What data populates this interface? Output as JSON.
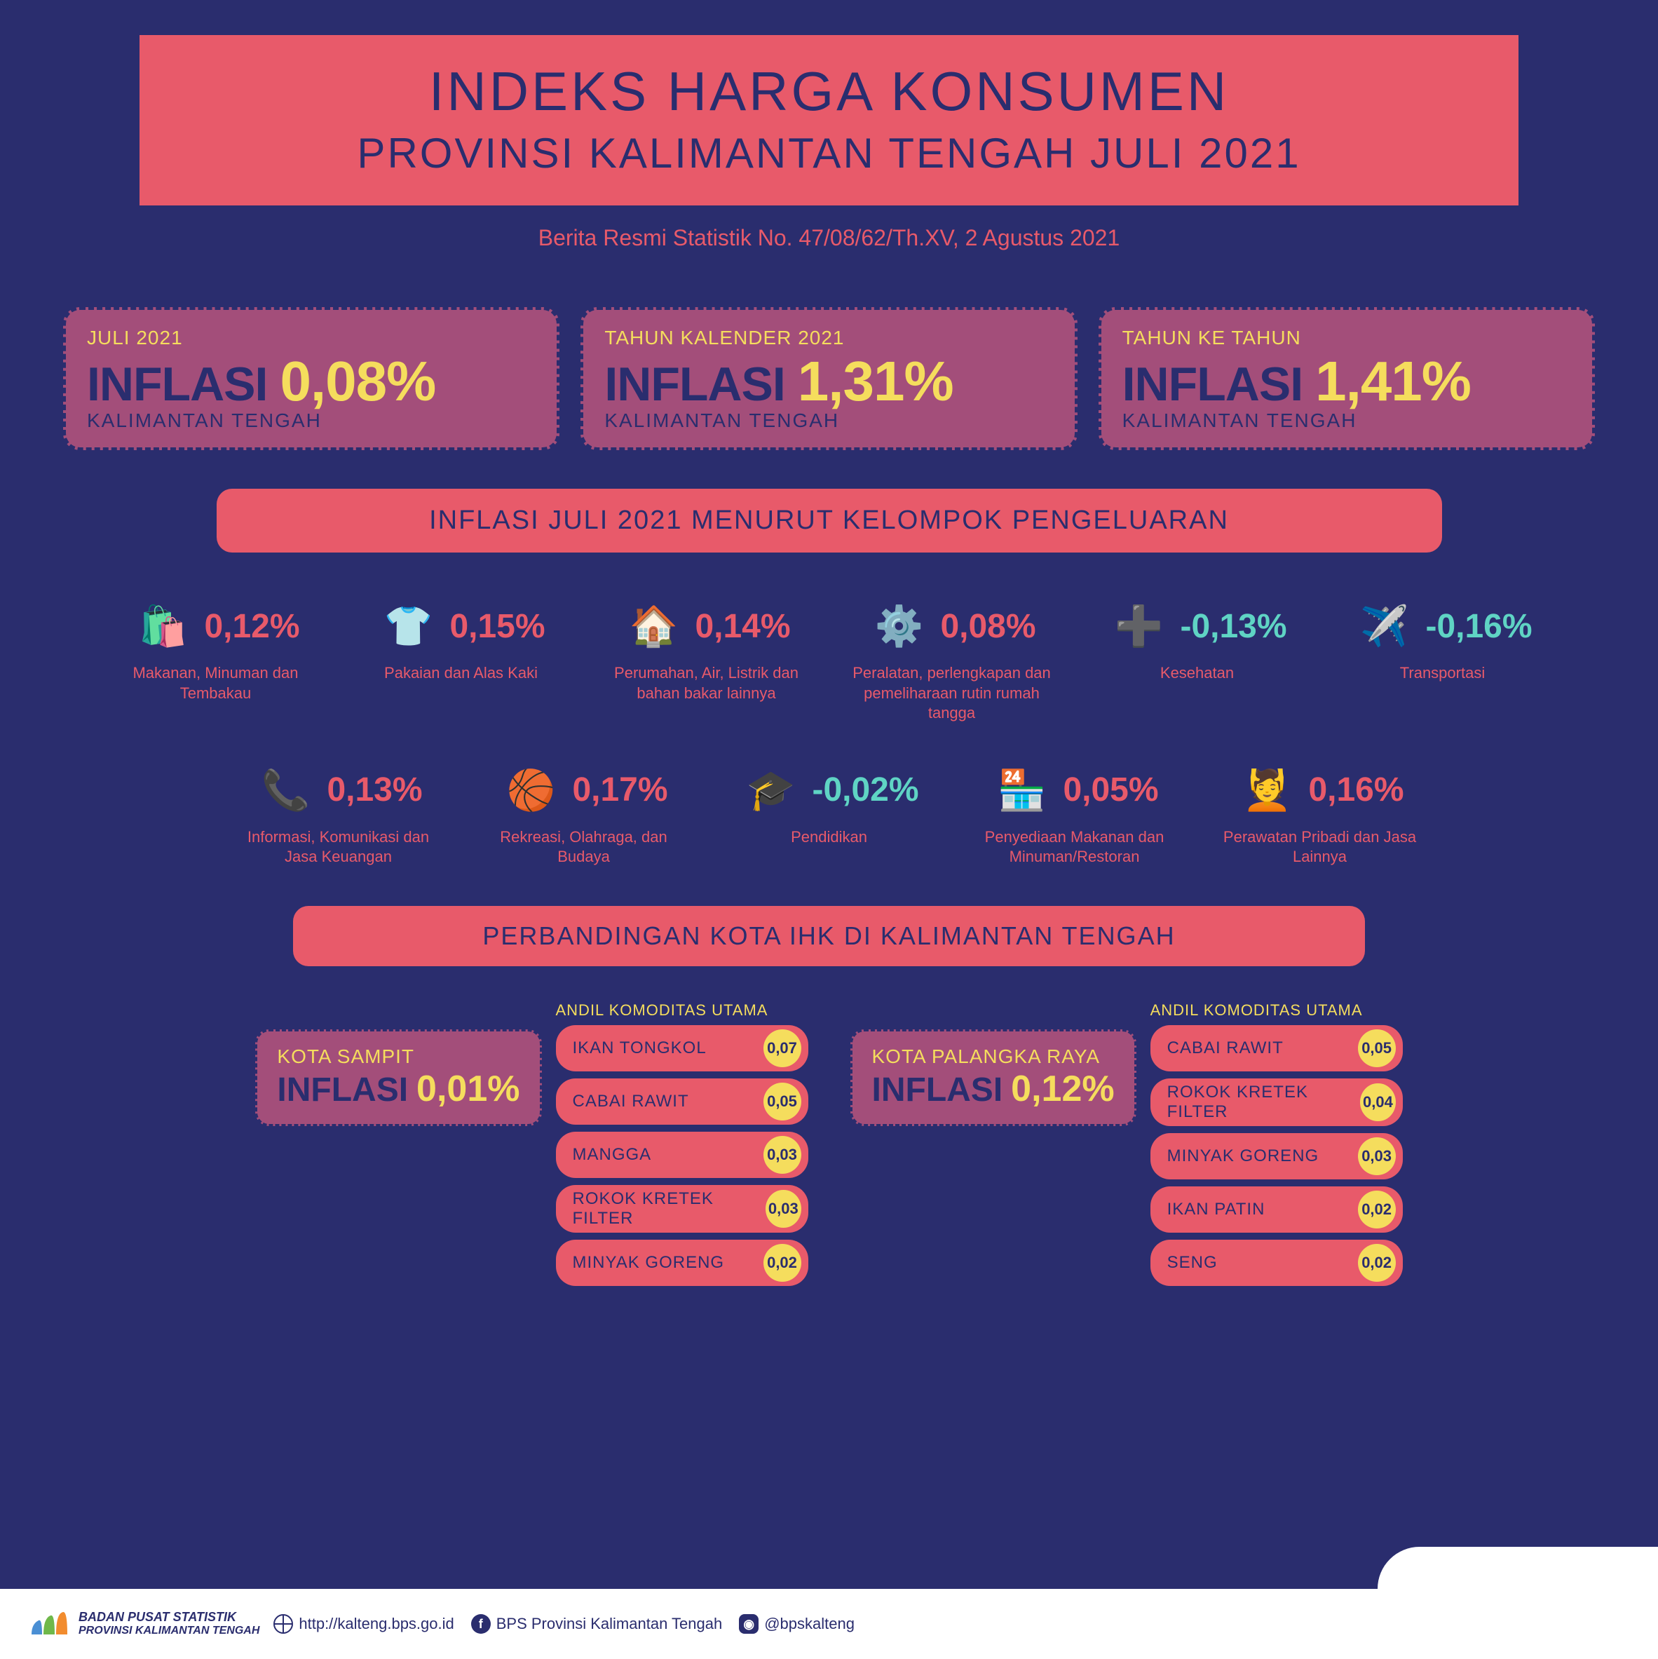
{
  "colors": {
    "background": "#2a2d6e",
    "banner": "#e85a6a",
    "card": "#a34e7a",
    "accent_yellow": "#f5dd5d",
    "accent_teal": "#5fd4c4",
    "white": "#ffffff"
  },
  "header": {
    "title_main": "INDEKS HARGA KONSUMEN",
    "title_sub": "PROVINSI KALIMANTAN TENGAH JULI 2021",
    "note": "Berita Resmi Statistik No. 47/08/62/Th.XV, 2 Agustus 2021"
  },
  "stats": [
    {
      "period": "JULI 2021",
      "label": "INFLASI",
      "value": "0,08%",
      "region": "KALIMANTAN TENGAH"
    },
    {
      "period": "TAHUN KALENDER 2021",
      "label": "INFLASI",
      "value": "1,31%",
      "region": "KALIMANTAN TENGAH"
    },
    {
      "period": "TAHUN KE TAHUN",
      "label": "INFLASI",
      "value": "1,41%",
      "region": "KALIMANTAN TENGAH"
    }
  ],
  "section_category": "INFLASI JULI 2021 MENURUT KELOMPOK PENGELUARAN",
  "categories_row1": [
    {
      "icon": "🛍️",
      "value": "0,12%",
      "negative": false,
      "label": "Makanan, Minuman dan Tembakau"
    },
    {
      "icon": "👕",
      "value": "0,15%",
      "negative": false,
      "label": "Pakaian dan Alas Kaki"
    },
    {
      "icon": "🏠",
      "value": "0,14%",
      "negative": false,
      "label": "Perumahan, Air, Listrik dan bahan bakar lainnya"
    },
    {
      "icon": "⚙️",
      "value": "0,08%",
      "negative": false,
      "label": "Peralatan, perlengkapan dan pemeliharaan rutin rumah tangga"
    },
    {
      "icon": "➕",
      "value": "-0,13%",
      "negative": true,
      "label": "Kesehatan"
    },
    {
      "icon": "✈️",
      "value": "-0,16%",
      "negative": true,
      "label": "Transportasi"
    }
  ],
  "categories_row2": [
    {
      "icon": "📞",
      "value": "0,13%",
      "negative": false,
      "label": "Informasi, Komunikasi dan Jasa Keuangan"
    },
    {
      "icon": "🏀",
      "value": "0,17%",
      "negative": false,
      "label": "Rekreasi, Olahraga, dan Budaya"
    },
    {
      "icon": "🎓",
      "value": "-0,02%",
      "negative": true,
      "label": "Pendidikan"
    },
    {
      "icon": "🏪",
      "value": "0,05%",
      "negative": false,
      "label": "Penyediaan Makanan dan Minuman/Restoran"
    },
    {
      "icon": "💆",
      "value": "0,16%",
      "negative": false,
      "label": "Perawatan Pribadi dan Jasa Lainnya"
    }
  ],
  "section_city": "PERBANDINGAN KOTA IHK DI KALIMANTAN TENGAH",
  "commodity_title": "ANDIL KOMODITAS UTAMA",
  "cities": [
    {
      "name": "KOTA SAMPIT",
      "label": "INFLASI",
      "value": "0,01%",
      "commodities": [
        {
          "name": "IKAN TONGKOL",
          "val": "0,07"
        },
        {
          "name": "CABAI RAWIT",
          "val": "0,05"
        },
        {
          "name": "MANGGA",
          "val": "0,03"
        },
        {
          "name": "ROKOK KRETEK FILTER",
          "val": "0,03"
        },
        {
          "name": "MINYAK GORENG",
          "val": "0,02"
        }
      ]
    },
    {
      "name": "KOTA PALANGKA RAYA",
      "label": "INFLASI",
      "value": "0,12%",
      "commodities": [
        {
          "name": "CABAI RAWIT",
          "val": "0,05"
        },
        {
          "name": "ROKOK KRETEK FILTER",
          "val": "0,04"
        },
        {
          "name": "MINYAK GORENG",
          "val": "0,03"
        },
        {
          "name": "IKAN PATIN",
          "val": "0,02"
        },
        {
          "name": "SENG",
          "val": "0,02"
        }
      ]
    }
  ],
  "footer": {
    "org1": "BADAN PUSAT STATISTIK",
    "org2": "PROVINSI KALIMANTAN TENGAH",
    "url": "http://kalteng.bps.go.id",
    "fb": "BPS Provinsi Kalimantan Tengah",
    "ig": "@bpskalteng"
  }
}
